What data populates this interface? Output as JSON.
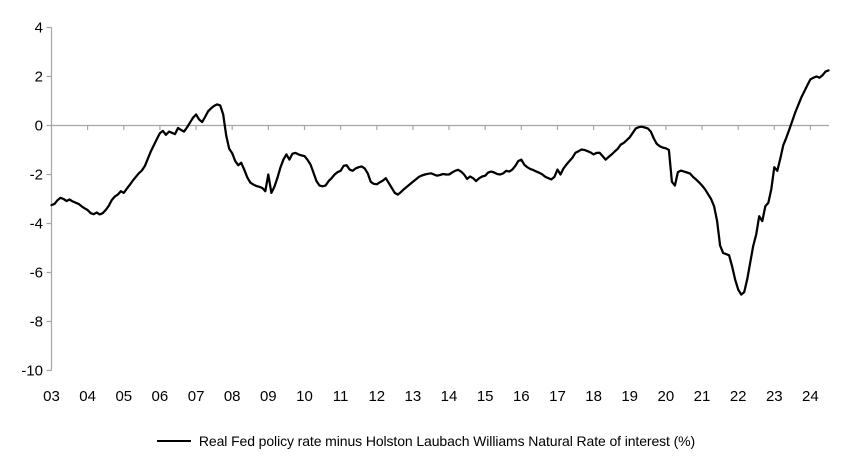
{
  "chart_data": {
    "type": "line",
    "title": "",
    "legend_position": "bottom",
    "grid": "zero-line-only",
    "ylim": [
      -10,
      4
    ],
    "y_ticks": [
      4,
      2,
      0,
      -2,
      -4,
      -6,
      -8,
      -10
    ],
    "x_tick_labels": [
      "03",
      "04",
      "05",
      "06",
      "07",
      "08",
      "09",
      "10",
      "11",
      "12",
      "13",
      "14",
      "15",
      "16",
      "17",
      "18",
      "19",
      "20",
      "21",
      "22",
      "23",
      "24"
    ],
    "x_axis_note": "monthly data, Jan 2003 through Jul 2024, year ticks on zero line",
    "colors": {
      "line": "#000000",
      "axis": "#a6a6a6",
      "text": "#000000",
      "background": "#ffffff"
    },
    "series": [
      {
        "name": "Real Fed policy rate minus Holston Laubach Williams Natural Rate of interest (%)",
        "start_year": 2003,
        "frequency": "monthly",
        "values": [
          -3.25,
          -3.2,
          -3.05,
          -2.95,
          -3.0,
          -3.08,
          -3.02,
          -3.1,
          -3.15,
          -3.2,
          -3.3,
          -3.38,
          -3.45,
          -3.58,
          -3.62,
          -3.55,
          -3.63,
          -3.58,
          -3.45,
          -3.28,
          -3.05,
          -2.9,
          -2.82,
          -2.68,
          -2.75,
          -2.58,
          -2.42,
          -2.25,
          -2.1,
          -1.95,
          -1.84,
          -1.65,
          -1.35,
          -1.05,
          -0.8,
          -0.55,
          -0.31,
          -0.22,
          -0.38,
          -0.25,
          -0.3,
          -0.35,
          -0.1,
          -0.18,
          -0.25,
          -0.08,
          0.12,
          0.32,
          0.45,
          0.25,
          0.14,
          0.35,
          0.58,
          0.7,
          0.8,
          0.86,
          0.82,
          0.45,
          -0.41,
          -0.95,
          -1.13,
          -1.45,
          -1.62,
          -1.52,
          -1.8,
          -2.12,
          -2.33,
          -2.41,
          -2.47,
          -2.5,
          -2.55,
          -2.68,
          -2.0,
          -2.75,
          -2.5,
          -2.14,
          -1.72,
          -1.39,
          -1.18,
          -1.39,
          -1.15,
          -1.12,
          -1.18,
          -1.22,
          -1.25,
          -1.4,
          -1.59,
          -1.93,
          -2.27,
          -2.45,
          -2.48,
          -2.45,
          -2.27,
          -2.15,
          -2.0,
          -1.9,
          -1.85,
          -1.65,
          -1.62,
          -1.8,
          -1.85,
          -1.75,
          -1.7,
          -1.67,
          -1.75,
          -1.95,
          -2.3,
          -2.38,
          -2.4,
          -2.32,
          -2.25,
          -2.15,
          -2.35,
          -2.55,
          -2.75,
          -2.82,
          -2.72,
          -2.6,
          -2.5,
          -2.4,
          -2.3,
          -2.2,
          -2.1,
          -2.04,
          -2.0,
          -1.97,
          -1.95,
          -2.0,
          -2.05,
          -2.02,
          -1.98,
          -2.0,
          -2.0,
          -1.92,
          -1.85,
          -1.81,
          -1.88,
          -2.0,
          -2.18,
          -2.08,
          -2.15,
          -2.27,
          -2.15,
          -2.08,
          -2.05,
          -1.92,
          -1.88,
          -1.92,
          -1.98,
          -2.0,
          -1.95,
          -1.85,
          -1.88,
          -1.8,
          -1.65,
          -1.45,
          -1.39,
          -1.6,
          -1.7,
          -1.78,
          -1.82,
          -1.88,
          -1.93,
          -2.0,
          -2.1,
          -2.15,
          -2.2,
          -2.1,
          -1.8,
          -2.0,
          -1.75,
          -1.59,
          -1.45,
          -1.31,
          -1.11,
          -1.05,
          -0.98,
          -1.0,
          -1.05,
          -1.1,
          -1.18,
          -1.12,
          -1.11,
          -1.25,
          -1.39,
          -1.28,
          -1.18,
          -1.06,
          -0.95,
          -0.78,
          -0.71,
          -0.6,
          -0.48,
          -0.3,
          -0.12,
          -0.07,
          -0.05,
          -0.08,
          -0.12,
          -0.25,
          -0.53,
          -0.75,
          -0.85,
          -0.9,
          -0.93,
          -1.0,
          -2.3,
          -2.45,
          -1.9,
          -1.84,
          -1.88,
          -1.92,
          -1.96,
          -2.1,
          -2.2,
          -2.32,
          -2.45,
          -2.6,
          -2.8,
          -3.0,
          -3.3,
          -3.9,
          -4.9,
          -5.2,
          -5.25,
          -5.3,
          -5.75,
          -6.28,
          -6.7,
          -6.9,
          -6.8,
          -6.28,
          -5.6,
          -4.92,
          -4.45,
          -3.7,
          -3.9,
          -3.3,
          -3.16,
          -2.6,
          -1.7,
          -1.85,
          -1.35,
          -0.8,
          -0.5,
          -0.15,
          0.2,
          0.55,
          0.85,
          1.15,
          1.4,
          1.65,
          1.88,
          1.95,
          2.0,
          1.95,
          2.05,
          2.2,
          2.25
        ]
      }
    ]
  },
  "legend": {
    "label": "Real Fed policy rate minus Holston Laubach Williams Natural Rate of interest (%)"
  }
}
